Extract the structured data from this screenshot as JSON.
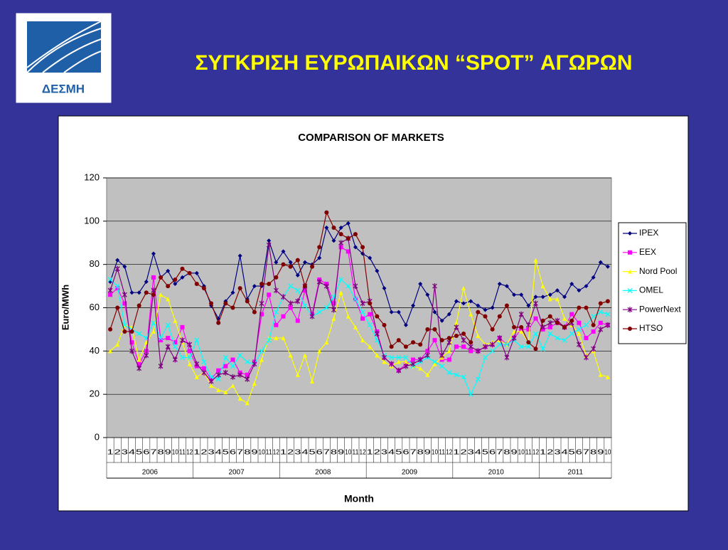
{
  "slide": {
    "title": "ΣΥΓΚΡΙΣΗ ΕΥΡΩΠΑΙΚΩΝ “SPOT” ΑΓΩΡΩΝ",
    "logo_text": "ΔΕΣΜΗ"
  },
  "chart_data": {
    "type": "line",
    "title": "COMPARISON OF MARKETS",
    "x_label": "Month",
    "y_label": "Euro/MWh",
    "categories": [
      "1",
      "2",
      "3",
      "4",
      "5",
      "6",
      "7",
      "8",
      "9",
      "10",
      "11",
      "12",
      "1",
      "2",
      "3",
      "4",
      "5",
      "6",
      "7",
      "8",
      "9",
      "10",
      "11",
      "12",
      "1",
      "2",
      "3",
      "4",
      "5",
      "6",
      "7",
      "8",
      "9",
      "10",
      "11",
      "12",
      "1",
      "2",
      "3",
      "4",
      "5",
      "6",
      "7",
      "8",
      "9",
      "10",
      "11",
      "12",
      "1",
      "2",
      "3",
      "4",
      "5",
      "6",
      "7",
      "8",
      "9",
      "10",
      "11",
      "12",
      "1",
      "2",
      "3",
      "4",
      "5",
      "6",
      "7",
      "8",
      "9",
      "10"
    ],
    "years": [
      "2006",
      "2007",
      "2008",
      "2009",
      "2010",
      "2011"
    ],
    "ylim": [
      0,
      120
    ],
    "yticks": [
      0,
      20,
      40,
      60,
      80,
      100,
      120
    ],
    "grid": true,
    "legend": "right",
    "series": [
      {
        "name": "IPEX",
        "color": "#000080",
        "marker": "diamond",
        "values": [
          72,
          82,
          79,
          67,
          67,
          72,
          85,
          74,
          77,
          71,
          74,
          76,
          76,
          70,
          61,
          55,
          63,
          67,
          84,
          64,
          70,
          70,
          91,
          81,
          86,
          81,
          75,
          81,
          80,
          83,
          97,
          91,
          97,
          99,
          88,
          85,
          83,
          77,
          69,
          58,
          58,
          52,
          61,
          71,
          66,
          58,
          54,
          57,
          63,
          62,
          63,
          61,
          59,
          60,
          71,
          70,
          66,
          66,
          61,
          65,
          65,
          66,
          68,
          65,
          71,
          68,
          70,
          74,
          81,
          79
        ]
      },
      {
        "name": "EEX",
        "color": "#ff00ff",
        "marker": "square",
        "values": [
          66,
          69,
          62,
          44,
          34,
          40,
          74,
          45,
          46,
          44,
          51,
          40,
          33,
          32,
          27,
          31,
          33,
          36,
          30,
          29,
          35,
          57,
          66,
          52,
          56,
          60,
          54,
          68,
          57,
          73,
          71,
          62,
          88,
          86,
          64,
          55,
          57,
          49,
          37,
          34,
          31,
          34,
          36,
          36,
          40,
          45,
          36,
          36,
          42,
          42,
          40,
          40,
          42,
          43,
          46,
          43,
          46,
          50,
          50,
          55,
          50,
          51,
          53,
          51,
          57,
          53,
          46,
          49,
          53,
          52
        ]
      },
      {
        "name": "Nord Pool",
        "color": "#ffff00",
        "marker": "triangle",
        "values": [
          40,
          43,
          52,
          51,
          36,
          44,
          49,
          66,
          64,
          54,
          44,
          34,
          28,
          30,
          24,
          22,
          21,
          24,
          18,
          16,
          25,
          36,
          46,
          46,
          46,
          38,
          29,
          38,
          26,
          40,
          44,
          55,
          67,
          56,
          51,
          45,
          42,
          38,
          35,
          33,
          35,
          35,
          33,
          32,
          29,
          34,
          37,
          40,
          53,
          69,
          57,
          47,
          43,
          44,
          45,
          43,
          49,
          49,
          44,
          82,
          70,
          64,
          64,
          55,
          52,
          48,
          38,
          40,
          29,
          28
        ]
      },
      {
        "name": "OMEL",
        "color": "#00ffff",
        "marker": "x",
        "values": [
          73,
          70,
          52,
          50,
          48,
          46,
          53,
          46,
          52,
          42,
          37,
          37,
          45,
          35,
          28,
          27,
          37,
          33,
          38,
          35,
          34,
          40,
          45,
          58,
          65,
          70,
          68,
          61,
          56,
          58,
          60,
          65,
          73,
          70,
          64,
          58,
          52,
          45,
          38,
          37,
          37,
          37,
          33,
          35,
          37,
          35,
          33,
          30,
          29,
          28,
          20,
          27,
          37,
          40,
          43,
          43,
          45,
          42,
          42,
          48,
          41,
          48,
          46,
          45,
          48,
          50,
          52,
          56,
          58,
          57
        ]
      },
      {
        "name": "PowerNext",
        "color": "#800080",
        "marker": "star",
        "values": [
          68,
          78,
          66,
          40,
          32,
          38,
          68,
          33,
          42,
          36,
          45,
          43,
          34,
          30,
          26,
          29,
          30,
          28,
          29,
          27,
          34,
          62,
          89,
          68,
          65,
          62,
          63,
          70,
          56,
          72,
          70,
          59,
          90,
          92,
          70,
          62,
          63,
          48,
          37,
          34,
          31,
          33,
          34,
          36,
          38,
          70,
          38,
          44,
          51,
          45,
          42,
          40,
          42,
          43,
          46,
          37,
          46,
          57,
          52,
          62,
          51,
          53,
          54,
          51,
          53,
          43,
          37,
          41,
          50,
          52
        ]
      },
      {
        "name": "HTSO",
        "color": "#800000",
        "marker": "circle",
        "values": [
          50,
          60,
          49,
          49,
          61,
          67,
          66,
          74,
          70,
          73,
          78,
          76,
          71,
          69,
          62,
          53,
          62,
          60,
          69,
          63,
          58,
          71,
          71,
          74,
          80,
          79,
          82,
          70,
          79,
          88,
          104,
          97,
          94,
          92,
          94,
          88,
          62,
          56,
          52,
          42,
          45,
          42,
          44,
          43,
          50,
          50,
          45,
          46,
          47,
          48,
          44,
          58,
          56,
          50,
          56,
          61,
          51,
          51,
          44,
          41,
          54,
          56,
          53,
          51,
          54,
          60,
          60,
          52,
          62,
          63
        ]
      }
    ]
  }
}
